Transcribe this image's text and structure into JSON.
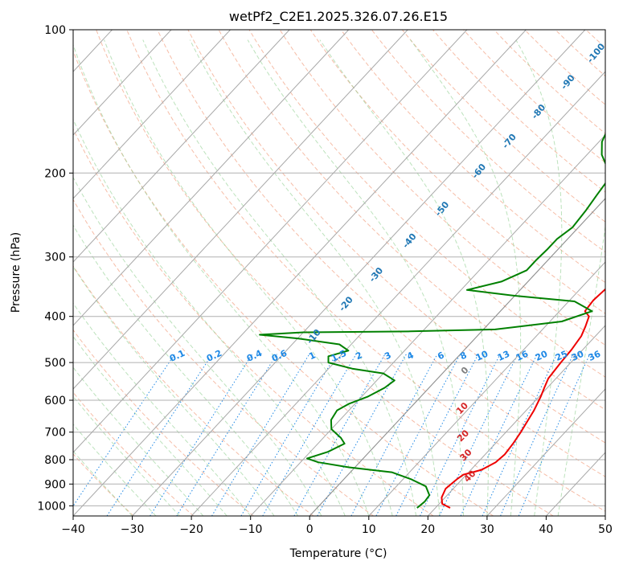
{
  "chart_data": {
    "type": "line",
    "title": "wetPf2_C2E1.2025.326.07.26.E15",
    "xlabel": "Temperature (°C)",
    "ylabel": "Pressure (hPa)",
    "xlim": [
      -40,
      50
    ],
    "ylim": [
      1050,
      100
    ],
    "y_scale": "log",
    "x_ticks": [
      -40,
      -30,
      -20,
      -10,
      0,
      10,
      20,
      30,
      40,
      50
    ],
    "y_ticks": [
      100,
      200,
      300,
      400,
      500,
      600,
      700,
      800,
      900,
      1000
    ],
    "grid": true,
    "skew_deg_per_decade": 75,
    "series": [
      {
        "name": "",
        "color": "#ee0000",
        "points": [
          [
            22.5,
            1010
          ],
          [
            20.5,
            990
          ],
          [
            19.4,
            960
          ],
          [
            18.7,
            920
          ],
          [
            19.1,
            880
          ],
          [
            19.5,
            860
          ],
          [
            21.8,
            840
          ],
          [
            23.0,
            810
          ],
          [
            23.3,
            780
          ],
          [
            23.0,
            740
          ],
          [
            22.5,
            700
          ],
          [
            22.0,
            670
          ],
          [
            21.3,
            630
          ],
          [
            20.3,
            590
          ],
          [
            19.5,
            565
          ],
          [
            18.7,
            540
          ],
          [
            18.3,
            500
          ],
          [
            18.1,
            470
          ],
          [
            17.6,
            440
          ],
          [
            16.8,
            420
          ],
          [
            15.8,
            400
          ],
          [
            14.3,
            390
          ],
          [
            14.0,
            370
          ],
          [
            14.3,
            350
          ],
          [
            13.6,
            330
          ],
          [
            12.3,
            300
          ],
          [
            10.6,
            280
          ],
          [
            8.5,
            255
          ],
          [
            6.5,
            230
          ],
          [
            4.3,
            210
          ],
          [
            2.7,
            195
          ],
          [
            2.5,
            180
          ],
          [
            3.2,
            155
          ],
          [
            3.6,
            140
          ],
          [
            4.3,
            122
          ],
          [
            5.3,
            113
          ],
          [
            6.6,
            108
          ],
          [
            8.6,
            100
          ]
        ]
      },
      {
        "name": "",
        "color": "#008000",
        "points": [
          [
            16.9,
            1010
          ],
          [
            17.2,
            980
          ],
          [
            17.0,
            950
          ],
          [
            15.0,
            910
          ],
          [
            11.5,
            880
          ],
          [
            7.0,
            850
          ],
          [
            -1.0,
            830
          ],
          [
            -7.0,
            810
          ],
          [
            -9.5,
            795
          ],
          [
            -7.0,
            770
          ],
          [
            -5.5,
            740
          ],
          [
            -7.0,
            720
          ],
          [
            -10.0,
            690
          ],
          [
            -11.5,
            660
          ],
          [
            -12.0,
            630
          ],
          [
            -11.0,
            610
          ],
          [
            -9.0,
            590
          ],
          [
            -7.5,
            565
          ],
          [
            -7.0,
            545
          ],
          [
            -10.0,
            527
          ],
          [
            -16.0,
            515
          ],
          [
            -21.0,
            500
          ],
          [
            -22.0,
            485
          ],
          [
            -19.5,
            472
          ],
          [
            -22.0,
            458
          ],
          [
            -30.0,
            445
          ],
          [
            -37.0,
            437
          ],
          [
            -30.0,
            432
          ],
          [
            -12.0,
            430
          ],
          [
            2.0,
            426
          ],
          [
            12.0,
            410
          ],
          [
            15.5,
            390
          ],
          [
            11.0,
            372
          ],
          [
            0.0,
            362
          ],
          [
            -9.0,
            352
          ],
          [
            -4.5,
            338
          ],
          [
            -2.0,
            320
          ],
          [
            -2.0,
            305
          ],
          [
            -1.8,
            290
          ],
          [
            -1.8,
            275
          ],
          [
            -1.0,
            260
          ],
          [
            -1.4,
            240
          ],
          [
            -2.0,
            222
          ],
          [
            -2.5,
            206
          ],
          [
            -4.5,
            195
          ],
          [
            -7.5,
            183
          ],
          [
            -9.5,
            172
          ],
          [
            -10.5,
            162
          ],
          [
            -8.5,
            150
          ],
          [
            -6.0,
            137
          ],
          [
            -4.0,
            125
          ],
          [
            -2.0,
            115
          ],
          [
            -1.0,
            108
          ],
          [
            -0.8,
            100
          ]
        ]
      }
    ],
    "dry_adiabat_labels": [
      "-100",
      "-90",
      "-80",
      "-70",
      "-60",
      "-50",
      "-40",
      "-30",
      "-20",
      "-10"
    ],
    "moist_adiabat_labels": [
      "0",
      "10",
      "20",
      "30",
      "40"
    ],
    "mixing_ratio_labels": [
      "0.1",
      "0.2",
      "0.4",
      "0.6",
      "1",
      "1.5",
      "2",
      "3",
      "4",
      "6",
      "8",
      "10",
      "13",
      "16",
      "20",
      "25",
      "30",
      "36"
    ]
  }
}
